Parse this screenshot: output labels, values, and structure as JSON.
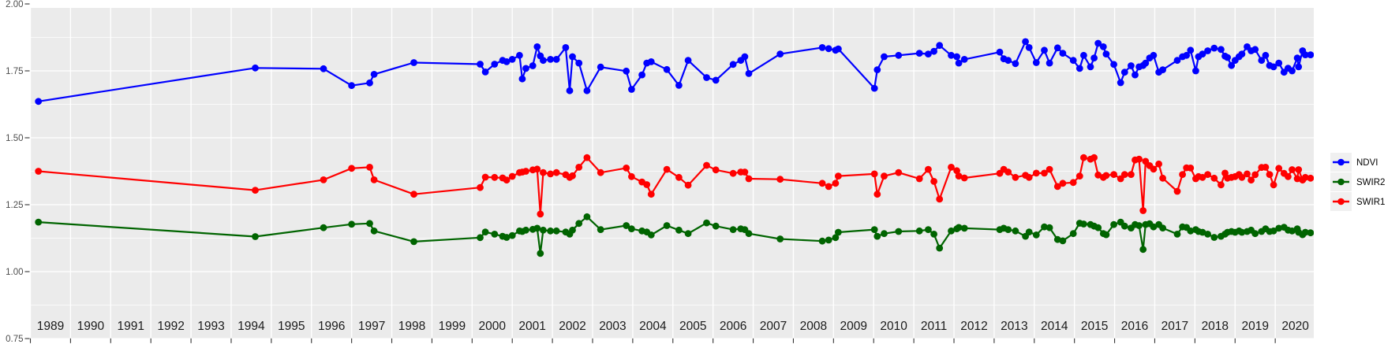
{
  "chart_data": {
    "type": "line",
    "title": "",
    "xlabel": "",
    "ylabel": "",
    "x_axis": {
      "range": [
        1988.99,
        2020.96
      ],
      "tick_years": [
        1989,
        1990,
        1991,
        1992,
        1993,
        1994,
        1995,
        1996,
        1997,
        1998,
        1999,
        2000,
        2001,
        2002,
        2003,
        2004,
        2005,
        2006,
        2007,
        2008,
        2009,
        2010,
        2011,
        2012,
        2013,
        2014,
        2015,
        2016,
        2017,
        2018,
        2019,
        2020
      ]
    },
    "y_axis": {
      "range": [
        0.75,
        2.0
      ],
      "ticks": [
        0.75,
        1.0,
        1.25,
        1.5,
        1.75,
        2.0
      ],
      "tick_labels": [
        "0.75",
        "1.00",
        "1.25",
        "1.50",
        "1.75",
        "2.00"
      ],
      "minor_step": 0.125,
      "grid": true
    },
    "legend": {
      "position": "right",
      "items": [
        {
          "label": "NDVI",
          "color": "#0000FF"
        },
        {
          "label": "SWIR2",
          "color": "#006400"
        },
        {
          "label": "SWIR1",
          "color": "#FF0000"
        }
      ]
    },
    "style": {
      "background": "#FFFFFF",
      "panel_bg": "#EBEBEB",
      "grid_color": "#FFFFFF",
      "tick_color": "#333333",
      "axis_text_color": "#4D4D4D",
      "year_text_color": "#1A1A1A",
      "legend_key_bg": "#F0F0F0",
      "legend_text_color": "#000000"
    },
    "x": [
      1989.2,
      1994.6,
      1996.3,
      1997.0,
      1997.45,
      1997.56,
      1998.55,
      2000.2,
      2000.33,
      2000.56,
      2000.76,
      2000.86,
      2001.0,
      2001.18,
      2001.25,
      2001.34,
      2001.51,
      2001.62,
      2001.7,
      2001.77,
      2001.95,
      2002.1,
      2002.33,
      2002.43,
      2002.5,
      2002.66,
      2002.86,
      2003.2,
      2003.84,
      2003.97,
      2004.23,
      2004.35,
      2004.46,
      2004.85,
      2005.15,
      2005.38,
      2005.84,
      2006.07,
      2006.5,
      2006.69,
      2006.79,
      2006.89,
      2007.67,
      2008.72,
      2008.88,
      2009.05,
      2009.12,
      2010.02,
      2010.09,
      2010.26,
      2010.62,
      2011.14,
      2011.36,
      2011.5,
      2011.64,
      2011.93,
      2012.07,
      2012.12,
      2012.26,
      2013.14,
      2013.24,
      2013.35,
      2013.53,
      2013.78,
      2013.87,
      2014.05,
      2014.25,
      2014.38,
      2014.58,
      2014.71,
      2014.97,
      2015.13,
      2015.23,
      2015.4,
      2015.49,
      2015.59,
      2015.72,
      2015.79,
      2015.98,
      2016.15,
      2016.25,
      2016.41,
      2016.51,
      2016.61,
      2016.71,
      2016.77,
      2016.87,
      2016.97,
      2017.1,
      2017.2,
      2017.56,
      2017.69,
      2017.79,
      2017.89,
      2018.02,
      2018.09,
      2018.19,
      2018.32,
      2018.48,
      2018.65,
      2018.75,
      2018.81,
      2018.91,
      2019.0,
      2019.1,
      2019.17,
      2019.3,
      2019.4,
      2019.5,
      2019.66,
      2019.76,
      2019.86,
      2019.96,
      2020.09,
      2020.22,
      2020.32,
      2020.42,
      2020.55,
      2020.58,
      2020.68,
      2020.75,
      2020.88
    ],
    "series": [
      {
        "name": "NDVI",
        "color": "#0000FF",
        "values": [
          1.636,
          1.761,
          1.758,
          1.695,
          1.705,
          1.737,
          1.781,
          1.775,
          1.746,
          1.775,
          1.789,
          1.784,
          1.793,
          1.808,
          1.72,
          1.759,
          1.769,
          1.84,
          1.806,
          1.789,
          1.793,
          1.793,
          1.837,
          1.676,
          1.803,
          1.779,
          1.676,
          1.764,
          1.749,
          1.681,
          1.735,
          1.779,
          1.784,
          1.755,
          1.696,
          1.789,
          1.725,
          1.715,
          1.774,
          1.789,
          1.803,
          1.74,
          1.813,
          1.837,
          1.833,
          1.827,
          1.832,
          1.685,
          1.754,
          1.803,
          1.808,
          1.816,
          1.813,
          1.823,
          1.845,
          1.808,
          1.803,
          1.779,
          1.793,
          1.82,
          1.795,
          1.789,
          1.777,
          1.859,
          1.837,
          1.781,
          1.827,
          1.779,
          1.836,
          1.816,
          1.789,
          1.759,
          1.808,
          1.765,
          1.798,
          1.853,
          1.84,
          1.813,
          1.774,
          1.706,
          1.745,
          1.769,
          1.735,
          1.765,
          1.77,
          1.779,
          1.798,
          1.808,
          1.745,
          1.754,
          1.789,
          1.803,
          1.808,
          1.827,
          1.75,
          1.803,
          1.813,
          1.825,
          1.835,
          1.83,
          1.805,
          1.8,
          1.77,
          1.789,
          1.803,
          1.813,
          1.84,
          1.825,
          1.83,
          1.789,
          1.808,
          1.77,
          1.765,
          1.779,
          1.745,
          1.76,
          1.75,
          1.798,
          1.765,
          1.825,
          1.81,
          1.81
        ]
      },
      {
        "name": "SWIR2",
        "color": "#006400",
        "values": [
          1.185,
          1.131,
          1.164,
          1.177,
          1.18,
          1.152,
          1.112,
          1.127,
          1.148,
          1.14,
          1.132,
          1.128,
          1.135,
          1.152,
          1.15,
          1.155,
          1.158,
          1.162,
          1.068,
          1.155,
          1.152,
          1.152,
          1.148,
          1.14,
          1.155,
          1.18,
          1.205,
          1.157,
          1.172,
          1.16,
          1.152,
          1.148,
          1.137,
          1.172,
          1.155,
          1.142,
          1.182,
          1.17,
          1.157,
          1.16,
          1.157,
          1.142,
          1.122,
          1.114,
          1.118,
          1.127,
          1.147,
          1.157,
          1.132,
          1.142,
          1.15,
          1.152,
          1.157,
          1.14,
          1.088,
          1.152,
          1.16,
          1.165,
          1.162,
          1.157,
          1.162,
          1.157,
          1.152,
          1.132,
          1.148,
          1.137,
          1.167,
          1.164,
          1.12,
          1.115,
          1.142,
          1.181,
          1.178,
          1.176,
          1.17,
          1.164,
          1.142,
          1.138,
          1.176,
          1.185,
          1.17,
          1.163,
          1.176,
          1.172,
          1.083,
          1.176,
          1.179,
          1.167,
          1.176,
          1.163,
          1.14,
          1.167,
          1.165,
          1.152,
          1.157,
          1.15,
          1.147,
          1.14,
          1.128,
          1.132,
          1.14,
          1.147,
          1.15,
          1.147,
          1.152,
          1.147,
          1.15,
          1.155,
          1.142,
          1.15,
          1.16,
          1.15,
          1.152,
          1.162,
          1.166,
          1.155,
          1.152,
          1.16,
          1.147,
          1.138,
          1.147,
          1.145
        ]
      },
      {
        "name": "SWIR1",
        "color": "#FF0000",
        "values": [
          1.375,
          1.304,
          1.343,
          1.386,
          1.39,
          1.343,
          1.289,
          1.314,
          1.353,
          1.352,
          1.35,
          1.342,
          1.356,
          1.37,
          1.372,
          1.375,
          1.38,
          1.383,
          1.215,
          1.37,
          1.365,
          1.37,
          1.362,
          1.352,
          1.358,
          1.39,
          1.426,
          1.37,
          1.387,
          1.355,
          1.335,
          1.325,
          1.289,
          1.382,
          1.352,
          1.323,
          1.397,
          1.38,
          1.367,
          1.372,
          1.372,
          1.347,
          1.345,
          1.33,
          1.318,
          1.33,
          1.357,
          1.365,
          1.289,
          1.357,
          1.37,
          1.347,
          1.382,
          1.337,
          1.271,
          1.39,
          1.377,
          1.357,
          1.35,
          1.367,
          1.382,
          1.372,
          1.352,
          1.36,
          1.352,
          1.368,
          1.368,
          1.382,
          1.318,
          1.33,
          1.333,
          1.357,
          1.426,
          1.42,
          1.426,
          1.361,
          1.352,
          1.359,
          1.363,
          1.347,
          1.363,
          1.363,
          1.417,
          1.42,
          1.228,
          1.412,
          1.396,
          1.383,
          1.402,
          1.349,
          1.3,
          1.363,
          1.388,
          1.387,
          1.347,
          1.355,
          1.352,
          1.363,
          1.349,
          1.324,
          1.368,
          1.349,
          1.352,
          1.355,
          1.363,
          1.352,
          1.365,
          1.342,
          1.362,
          1.389,
          1.39,
          1.363,
          1.324,
          1.386,
          1.367,
          1.355,
          1.381,
          1.347,
          1.381,
          1.342,
          1.352,
          1.349
        ]
      }
    ]
  }
}
